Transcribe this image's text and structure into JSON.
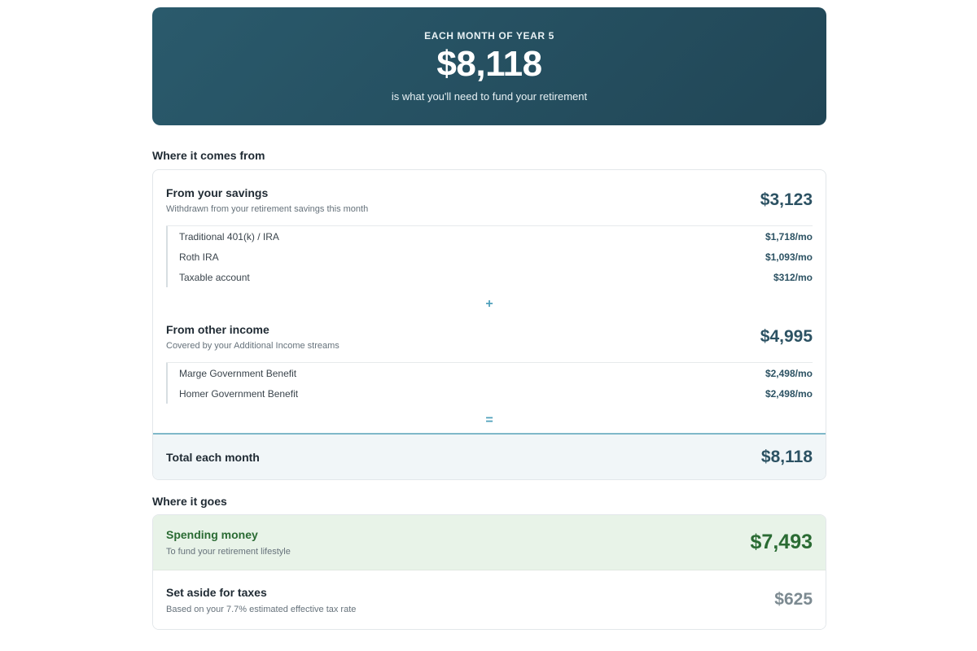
{
  "hero": {
    "kicker": "EACH MONTH OF YEAR 5",
    "amount": "$8,118",
    "subtitle": "is what you'll need to fund your retirement"
  },
  "sources": {
    "title": "Where it comes from",
    "savings": {
      "title": "From your savings",
      "description": "Withdrawn from your retirement savings this month",
      "amount": "$3,123",
      "items": [
        {
          "name": "Traditional 401(k) / IRA",
          "amount": "$1,718/mo"
        },
        {
          "name": "Roth IRA",
          "amount": "$1,093/mo"
        },
        {
          "name": "Taxable account",
          "amount": "$312/mo"
        }
      ]
    },
    "plus_symbol": "+",
    "income": {
      "title": "From other income",
      "description": "Covered by your Additional Income streams",
      "amount": "$4,995",
      "items": [
        {
          "name": "Marge Government Benefit",
          "amount": "$2,498/mo"
        },
        {
          "name": "Homer Government Benefit",
          "amount": "$2,498/mo"
        }
      ]
    },
    "equals_symbol": "=",
    "total": {
      "label": "Total each month",
      "amount": "$8,118"
    }
  },
  "uses": {
    "title": "Where it goes",
    "spending": {
      "title": "Spending money",
      "description": "To fund your retirement lifestyle",
      "amount": "$7,493"
    },
    "taxes": {
      "title": "Set aside for taxes",
      "description": "Based on your 7.7% estimated effective tax rate",
      "amount": "$625"
    }
  },
  "colors": {
    "hero_bg": "#2a5a6c",
    "accent": "#4fa0bb",
    "spending_green": "#2a6b33",
    "spending_bg": "#e8f3e8"
  }
}
